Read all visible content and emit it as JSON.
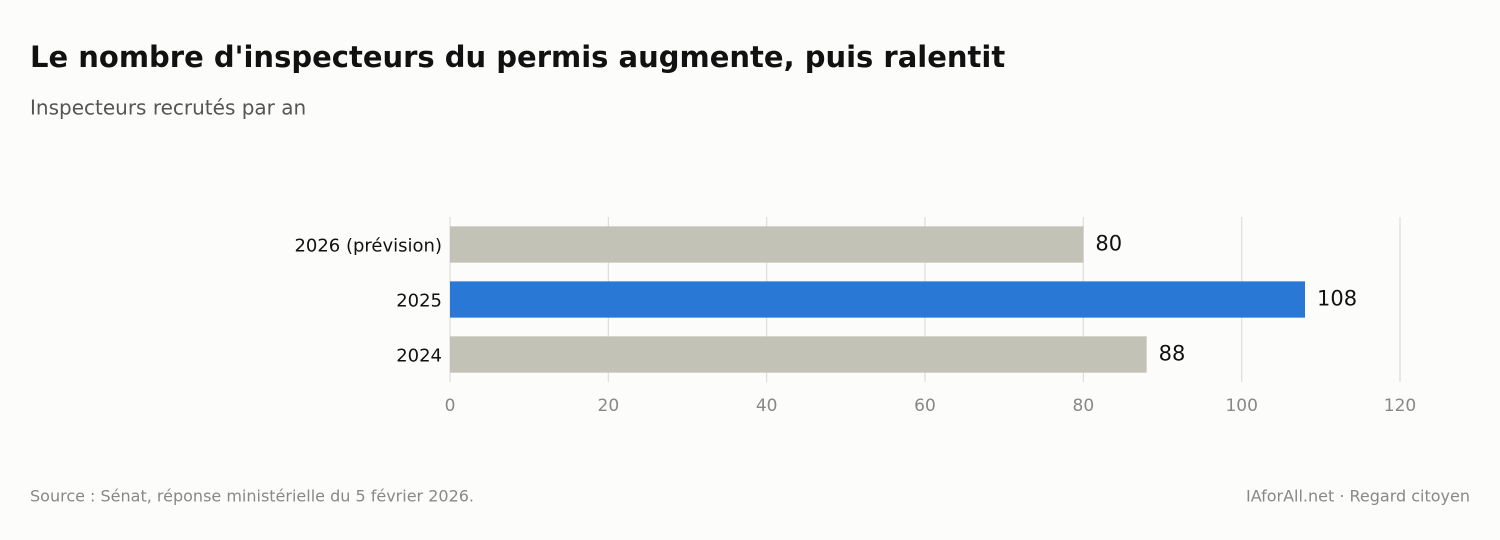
{
  "chart_data": {
    "type": "barh",
    "title": "Le nombre d'inspecteurs du permis augmente, puis ralentit",
    "subtitle": "Inspecteurs recrutés par an",
    "categories": [
      "2024",
      "2025",
      "2026 (prévision)"
    ],
    "values": [
      88,
      108,
      80
    ],
    "colors": [
      "#c2c2b6",
      "#2a78d6",
      "#c2c2b6"
    ],
    "xlim": [
      0,
      120
    ],
    "xticks": [
      0,
      20,
      40,
      60,
      80,
      100,
      120
    ],
    "grid": true,
    "source": "Source : Sénat, réponse ministérielle du 5 février 2026.",
    "credit": "IAforAll.net · Regard citoyen"
  }
}
